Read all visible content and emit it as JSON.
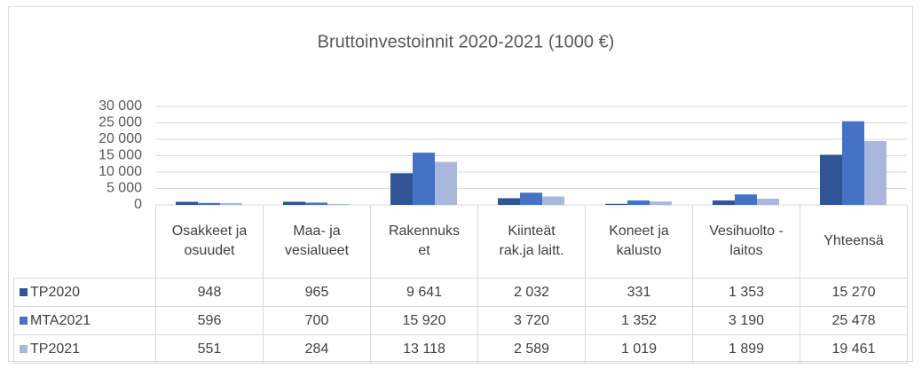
{
  "chart_data": {
    "type": "bar",
    "title": "Bruttoinvestoinnit 2020-2021 (1000 €)",
    "categories": [
      "Osakkeet ja osuudet",
      "Maa- ja vesialueet",
      "Rakennukset",
      "Kiinteät rak.ja laitt.",
      "Koneet ja kalusto",
      "Vesihuolto - laitos",
      "Yhteensä"
    ],
    "series": [
      {
        "name": "TP2020",
        "color": "#2f5597",
        "values": [
          948,
          965,
          9641,
          2032,
          331,
          1353,
          15270
        ],
        "value_labels": [
          "948",
          "965",
          "9 641",
          "2 032",
          "331",
          "1 353",
          "15 270"
        ]
      },
      {
        "name": "MTA2021",
        "color": "#4472c4",
        "values": [
          596,
          700,
          15920,
          3720,
          1352,
          3190,
          25478
        ],
        "value_labels": [
          "596",
          "700",
          "15 920",
          "3 720",
          "1 352",
          "3 190",
          "25 478"
        ]
      },
      {
        "name": "TP2021",
        "color": "#a9b7dd",
        "values": [
          551,
          284,
          13118,
          2589,
          1019,
          1899,
          19461
        ],
        "value_labels": [
          "551",
          "284",
          "13 118",
          "2 589",
          "1 019",
          "1 899",
          "19 461"
        ]
      }
    ],
    "ylim": [
      0,
      30000
    ],
    "yticks": [
      0,
      {
        "value": 5000,
        "label": "5 000"
      },
      {
        "value": 10000,
        "label": "10 000"
      },
      {
        "value": 15000,
        "label": "15 000"
      },
      {
        "value": 20000,
        "label": "20 000"
      },
      {
        "value": 25000,
        "label": "25 000"
      },
      {
        "value": 30000,
        "label": "30 000"
      }
    ],
    "grid": true
  }
}
